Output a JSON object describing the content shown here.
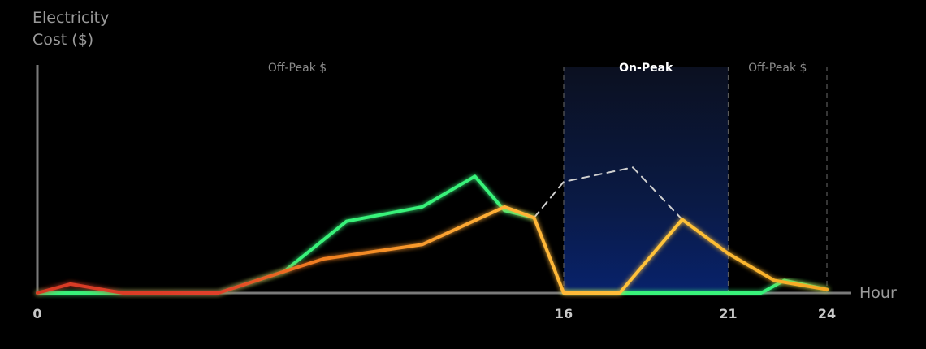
{
  "chart_data": {
    "type": "line",
    "ylabel_lines": [
      "Electricity",
      "Cost ($)"
    ],
    "xlabel": "Hour",
    "xlim": [
      0,
      24
    ],
    "ylim": [
      0,
      10
    ],
    "x_ticks": [
      0,
      16,
      21,
      24
    ],
    "grid": false,
    "periods": [
      {
        "label": "Off-Peak $",
        "start": 0,
        "end": 16,
        "type": "off-peak"
      },
      {
        "label": "On-Peak",
        "start": 16,
        "end": 21,
        "type": "on-peak"
      },
      {
        "label": "Off-Peak $",
        "start": 21,
        "end": 24,
        "type": "off-peak"
      }
    ],
    "series": [
      {
        "color": "#39f27a",
        "style": "solid",
        "x": [
          0,
          1,
          2,
          3,
          4,
          5.5,
          7.5,
          9.4,
          11.7,
          13.3,
          14.2,
          15.1
        ],
        "y": [
          0,
          0,
          0,
          0,
          0,
          0,
          1.2,
          4.0,
          4.8,
          6.5,
          4.6,
          4.2
        ]
      },
      {
        "color": "#ffffff",
        "style": "dashed",
        "x": [
          15.1,
          16,
          18.1,
          19.6,
          21
        ],
        "y": [
          4.2,
          6.2,
          7.0,
          4.1,
          2.2
        ]
      },
      {
        "color": "#39f27a",
        "style": "solid",
        "x": [
          16,
          18,
          19.6,
          21,
          22,
          22.7,
          24
        ],
        "y": [
          0,
          0,
          0,
          0,
          0,
          0.7,
          0.2
        ]
      },
      {
        "color": "#f5a623",
        "style": "solid",
        "gradient": [
          "#d63a24",
          "#f07d20",
          "#ffc43a"
        ],
        "x": [
          0,
          1,
          2.6,
          4,
          5.5,
          7.5,
          8.7,
          11.7,
          14.2,
          15.1,
          16,
          17.7,
          19.6,
          21,
          22.4,
          24
        ],
        "y": [
          0,
          0.5,
          0,
          0,
          0,
          1.2,
          1.9,
          2.7,
          4.8,
          4.2,
          0,
          0,
          4.1,
          2.2,
          0.7,
          0.2
        ]
      }
    ]
  }
}
